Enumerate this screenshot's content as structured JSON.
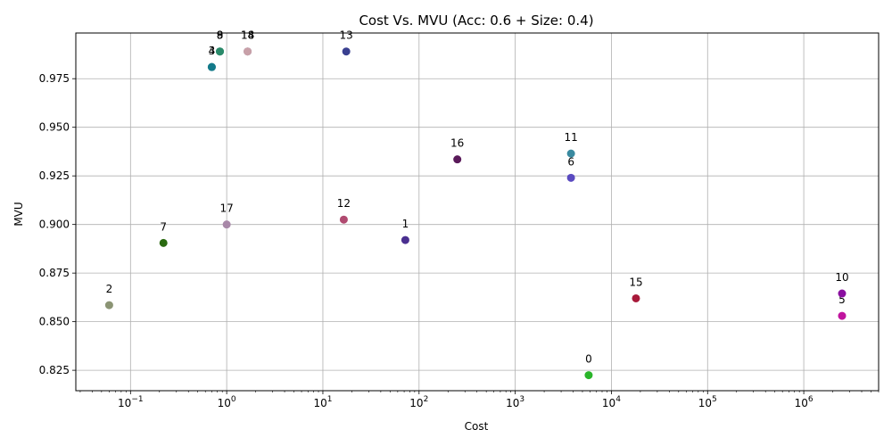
{
  "chart_data": {
    "type": "scatter",
    "title": "Cost Vs. MVU (Acc: 0.6 + Size: 0.4)",
    "xlabel": "Cost",
    "ylabel": "MVU",
    "x_scale": "log",
    "xlim": [
      0.027,
      6000000
    ],
    "ylim": [
      0.8145,
      0.9985
    ],
    "grid": true,
    "x_ticks": [
      {
        "value": 0.1,
        "base": "10",
        "exp": "−1"
      },
      {
        "value": 1,
        "base": "10",
        "exp": "0"
      },
      {
        "value": 10,
        "base": "10",
        "exp": "1"
      },
      {
        "value": 100,
        "base": "10",
        "exp": "2"
      },
      {
        "value": 1000,
        "base": "10",
        "exp": "3"
      },
      {
        "value": 10000,
        "base": "10",
        "exp": "4"
      },
      {
        "value": 100000,
        "base": "10",
        "exp": "5"
      },
      {
        "value": 1000000,
        "base": "10",
        "exp": "6"
      }
    ],
    "y_ticks": [
      {
        "value": 0.825,
        "label": "0.825"
      },
      {
        "value": 0.85,
        "label": "0.850"
      },
      {
        "value": 0.875,
        "label": "0.875"
      },
      {
        "value": 0.9,
        "label": "0.900"
      },
      {
        "value": 0.925,
        "label": "0.925"
      },
      {
        "value": 0.95,
        "label": "0.950"
      },
      {
        "value": 0.975,
        "label": "0.975"
      }
    ],
    "points": [
      {
        "label": "0",
        "x": 5800,
        "y": 0.8225,
        "color": "#2ab52a"
      },
      {
        "label": "1",
        "x": 72,
        "y": 0.892,
        "color": "#4a2f90"
      },
      {
        "label": "2",
        "x": 0.06,
        "y": 0.8585,
        "color": "#8b9474"
      },
      {
        "label": "3",
        "x": 0.7,
        "y": 0.981,
        "color": "#2a7f80"
      },
      {
        "label": "4",
        "x": 0.7,
        "y": 0.981,
        "color": "#137a8a"
      },
      {
        "label": "5",
        "x": 2500000,
        "y": 0.853,
        "color": "#c0149e"
      },
      {
        "label": "6",
        "x": 3800,
        "y": 0.924,
        "color": "#5a4ac0"
      },
      {
        "label": "7",
        "x": 0.22,
        "y": 0.8905,
        "color": "#2a6a10"
      },
      {
        "label": "8",
        "x": 0.85,
        "y": 0.989,
        "color": "#1a7a5a"
      },
      {
        "label": "9",
        "x": 0.85,
        "y": 0.989,
        "color": "#2a8a6a"
      },
      {
        "label": "10",
        "x": 2500000,
        "y": 0.8645,
        "color": "#8a10a0"
      },
      {
        "label": "11",
        "x": 3800,
        "y": 0.9365,
        "color": "#3a8aa0"
      },
      {
        "label": "12",
        "x": 16.5,
        "y": 0.9025,
        "color": "#b04a70"
      },
      {
        "label": "13",
        "x": 17.5,
        "y": 0.989,
        "color": "#3a4090"
      },
      {
        "label": "14",
        "x": 1.65,
        "y": 0.989,
        "color": "#8a7aa0"
      },
      {
        "label": "15",
        "x": 18000,
        "y": 0.862,
        "color": "#a81a3a"
      },
      {
        "label": "16",
        "x": 250,
        "y": 0.9335,
        "color": "#5a1a5a"
      },
      {
        "label": "17",
        "x": 1.0,
        "y": 0.9,
        "color": "#a888a8"
      },
      {
        "label": "18",
        "x": 1.65,
        "y": 0.989,
        "color": "#c8a0a8"
      }
    ]
  }
}
